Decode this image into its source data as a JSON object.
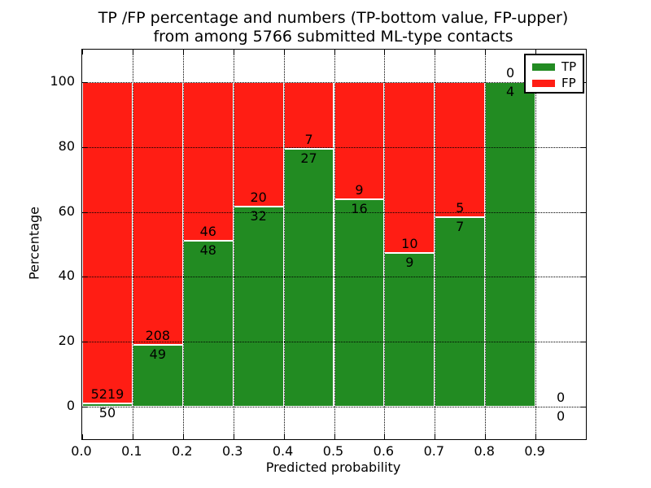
{
  "title": {
    "line1": "TP /FP percentage and numbers (TP-bottom value, FP-upper)",
    "line2": "from among 5766 submitted ML-type contacts"
  },
  "axes": {
    "xlabel": "Predicted probability",
    "ylabel": "Percentage"
  },
  "chart_data": {
    "type": "bar",
    "stacked": true,
    "unit": "percent",
    "title": "TP /FP percentage and numbers (TP-bottom value, FP-upper) from among 5766 submitted ML-type contacts",
    "xlabel": "Predicted probability",
    "ylabel": "Percentage",
    "xlim": [
      0.0,
      1.0
    ],
    "ylim": [
      -10,
      110
    ],
    "grid": "dotted",
    "legend_position": "upper right",
    "x_tick_values": [
      0.0,
      0.1,
      0.2,
      0.3,
      0.4,
      0.5,
      0.6,
      0.7,
      0.8,
      0.9
    ],
    "x_tick_labels": [
      "0.0",
      "0.1",
      "0.2",
      "0.3",
      "0.4",
      "0.5",
      "0.6",
      "0.7",
      "0.8",
      "0.9"
    ],
    "y_tick_values": [
      0,
      20,
      40,
      60,
      80,
      100
    ],
    "y_tick_labels": [
      "0",
      "20",
      "40",
      "60",
      "80",
      "100"
    ],
    "series": [
      {
        "name": "TP",
        "color": "#228b22"
      },
      {
        "name": "FP",
        "color": "#ff1d14"
      }
    ],
    "bins": [
      {
        "range": [
          0.0,
          0.1
        ],
        "tp": 50,
        "fp": 5219,
        "tp_pct": 0.9,
        "fp_pct": 99.1
      },
      {
        "range": [
          0.1,
          0.2
        ],
        "tp": 49,
        "fp": 208,
        "tp_pct": 19.1,
        "fp_pct": 80.9
      },
      {
        "range": [
          0.2,
          0.3
        ],
        "tp": 48,
        "fp": 46,
        "tp_pct": 51.1,
        "fp_pct": 48.9
      },
      {
        "range": [
          0.3,
          0.4
        ],
        "tp": 32,
        "fp": 20,
        "tp_pct": 61.5,
        "fp_pct": 38.5
      },
      {
        "range": [
          0.4,
          0.5
        ],
        "tp": 27,
        "fp": 7,
        "tp_pct": 79.4,
        "fp_pct": 20.6
      },
      {
        "range": [
          0.5,
          0.6
        ],
        "tp": 16,
        "fp": 9,
        "tp_pct": 64.0,
        "fp_pct": 36.0
      },
      {
        "range": [
          0.6,
          0.7
        ],
        "tp": 9,
        "fp": 10,
        "tp_pct": 47.4,
        "fp_pct": 52.6
      },
      {
        "range": [
          0.7,
          0.8
        ],
        "tp": 7,
        "fp": 5,
        "tp_pct": 58.3,
        "fp_pct": 41.7
      },
      {
        "range": [
          0.8,
          0.9
        ],
        "tp": 4,
        "fp": 0,
        "tp_pct": 100.0,
        "fp_pct": 0.0
      },
      {
        "range": [
          0.9,
          1.0
        ],
        "tp": 0,
        "fp": 0,
        "tp_pct": null,
        "fp_pct": null
      }
    ]
  }
}
